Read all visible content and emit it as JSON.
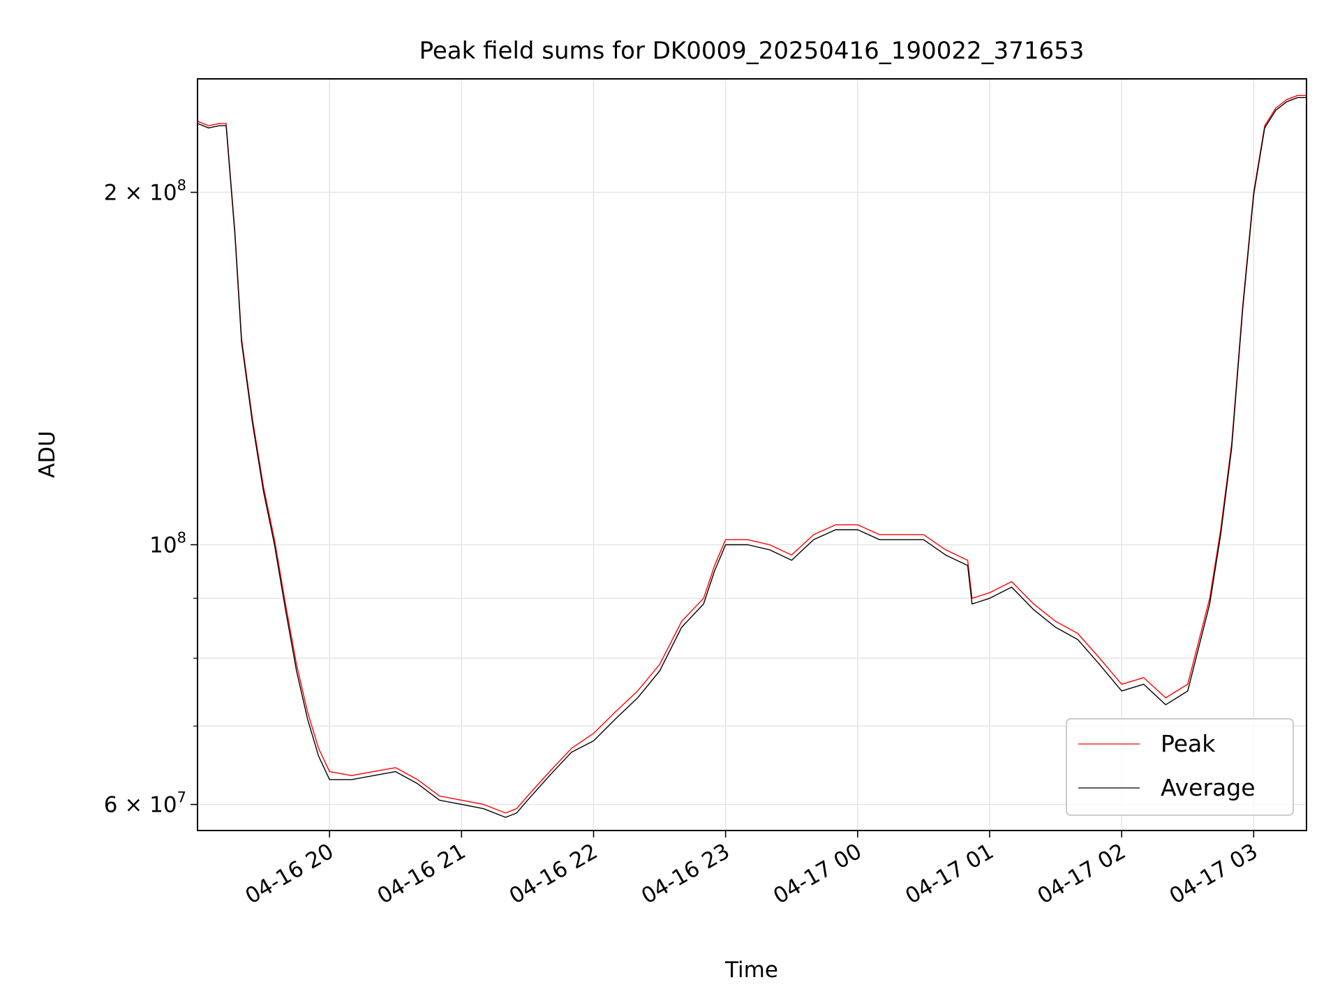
{
  "chart_data": {
    "type": "line",
    "title": "Peak field sums for DK0009_20250416_190022_371653",
    "xlabel": "Time",
    "ylabel": "ADU",
    "yscale": "log",
    "ylim": [
      57000000,
      250000000
    ],
    "xlim": [
      "2025-04-16 19:00",
      "2025-04-17 03:24"
    ],
    "grid": true,
    "legend_position": "lower-right",
    "x_ticks": [
      {
        "value": "2025-04-16 20:00",
        "label": "04-16 20"
      },
      {
        "value": "2025-04-16 21:00",
        "label": "04-16 21"
      },
      {
        "value": "2025-04-16 22:00",
        "label": "04-16 22"
      },
      {
        "value": "2025-04-16 23:00",
        "label": "04-16 23"
      },
      {
        "value": "2025-04-17 00:00",
        "label": "04-17 00"
      },
      {
        "value": "2025-04-17 01:00",
        "label": "04-17 01"
      },
      {
        "value": "2025-04-17 02:00",
        "label": "04-17 02"
      },
      {
        "value": "2025-04-17 03:00",
        "label": "04-17 03"
      }
    ],
    "y_ticks": [
      {
        "value": 60000000,
        "label": "6 × 10",
        "exponent": "7"
      },
      {
        "value": 100000000,
        "label": "10",
        "exponent": "8"
      },
      {
        "value": 200000000,
        "label": "2 × 10",
        "exponent": "8"
      }
    ],
    "y_minor_ticks": [
      70000000,
      80000000,
      90000000
    ],
    "series": [
      {
        "name": "Peak",
        "color": "#ff0000",
        "x": [
          "2025-04-16 19:00",
          "2025-04-16 19:05",
          "2025-04-16 19:10",
          "2025-04-16 19:13",
          "2025-04-16 19:17",
          "2025-04-16 19:20",
          "2025-04-16 19:25",
          "2025-04-16 19:30",
          "2025-04-16 19:35",
          "2025-04-16 19:40",
          "2025-04-16 19:45",
          "2025-04-16 19:50",
          "2025-04-16 19:55",
          "2025-04-16 20:00",
          "2025-04-16 20:10",
          "2025-04-16 20:20",
          "2025-04-16 20:30",
          "2025-04-16 20:40",
          "2025-04-16 20:50",
          "2025-04-16 21:00",
          "2025-04-16 21:10",
          "2025-04-16 21:20",
          "2025-04-16 21:25",
          "2025-04-16 21:30",
          "2025-04-16 21:40",
          "2025-04-16 21:50",
          "2025-04-16 22:00",
          "2025-04-16 22:10",
          "2025-04-16 22:20",
          "2025-04-16 22:30",
          "2025-04-16 22:40",
          "2025-04-16 22:50",
          "2025-04-16 22:55",
          "2025-04-16 23:00",
          "2025-04-16 23:10",
          "2025-04-16 23:20",
          "2025-04-16 23:30",
          "2025-04-16 23:40",
          "2025-04-16 23:50",
          "2025-04-17 00:00",
          "2025-04-17 00:10",
          "2025-04-17 00:20",
          "2025-04-17 00:30",
          "2025-04-17 00:40",
          "2025-04-17 00:50",
          "2025-04-17 00:52",
          "2025-04-17 01:00",
          "2025-04-17 01:10",
          "2025-04-17 01:20",
          "2025-04-17 01:30",
          "2025-04-17 01:40",
          "2025-04-17 01:50",
          "2025-04-17 02:00",
          "2025-04-17 02:10",
          "2025-04-17 02:20",
          "2025-04-17 02:30",
          "2025-04-17 02:40",
          "2025-04-17 02:45",
          "2025-04-17 02:50",
          "2025-04-17 02:55",
          "2025-04-17 03:00",
          "2025-04-17 03:05",
          "2025-04-17 03:10",
          "2025-04-17 03:15",
          "2025-04-17 03:20",
          "2025-04-17 03:24"
        ],
        "values": [
          230000000,
          228000000,
          229000000,
          229000000,
          185000000,
          150000000,
          128000000,
          112000000,
          101000000,
          89000000,
          79000000,
          72000000,
          67000000,
          64000000,
          63500000,
          64000000,
          64500000,
          63000000,
          61000000,
          60500000,
          60000000,
          59000000,
          59500000,
          61000000,
          64000000,
          67000000,
          69000000,
          72000000,
          75000000,
          79000000,
          86000000,
          90000000,
          96000000,
          101000000,
          101000000,
          100000000,
          98000000,
          102000000,
          104000000,
          104000000,
          102000000,
          102000000,
          102000000,
          99000000,
          97000000,
          90000000,
          91000000,
          93000000,
          89000000,
          86000000,
          84000000,
          80000000,
          76000000,
          77000000,
          74000000,
          76000000,
          90000000,
          103000000,
          122000000,
          160000000,
          200000000,
          228000000,
          236000000,
          240000000,
          242000000,
          242000000
        ]
      },
      {
        "name": "Average",
        "color": "#000000",
        "x": [
          "2025-04-16 19:00",
          "2025-04-16 19:05",
          "2025-04-16 19:10",
          "2025-04-16 19:13",
          "2025-04-16 19:17",
          "2025-04-16 19:20",
          "2025-04-16 19:25",
          "2025-04-16 19:30",
          "2025-04-16 19:35",
          "2025-04-16 19:40",
          "2025-04-16 19:45",
          "2025-04-16 19:50",
          "2025-04-16 19:55",
          "2025-04-16 20:00",
          "2025-04-16 20:10",
          "2025-04-16 20:20",
          "2025-04-16 20:30",
          "2025-04-16 20:40",
          "2025-04-16 20:50",
          "2025-04-16 21:00",
          "2025-04-16 21:10",
          "2025-04-16 21:20",
          "2025-04-16 21:25",
          "2025-04-16 21:30",
          "2025-04-16 21:40",
          "2025-04-16 21:50",
          "2025-04-16 22:00",
          "2025-04-16 22:10",
          "2025-04-16 22:20",
          "2025-04-16 22:30",
          "2025-04-16 22:40",
          "2025-04-16 22:50",
          "2025-04-16 22:55",
          "2025-04-16 23:00",
          "2025-04-16 23:10",
          "2025-04-16 23:20",
          "2025-04-16 23:30",
          "2025-04-16 23:40",
          "2025-04-16 23:50",
          "2025-04-17 00:00",
          "2025-04-17 00:10",
          "2025-04-17 00:20",
          "2025-04-17 00:30",
          "2025-04-17 00:40",
          "2025-04-17 00:50",
          "2025-04-17 00:52",
          "2025-04-17 01:00",
          "2025-04-17 01:10",
          "2025-04-17 01:20",
          "2025-04-17 01:30",
          "2025-04-17 01:40",
          "2025-04-17 01:50",
          "2025-04-17 02:00",
          "2025-04-17 02:10",
          "2025-04-17 02:20",
          "2025-04-17 02:30",
          "2025-04-17 02:40",
          "2025-04-17 02:45",
          "2025-04-17 02:50",
          "2025-04-17 02:55",
          "2025-04-17 03:00",
          "2025-04-17 03:05",
          "2025-04-17 03:10",
          "2025-04-17 03:15",
          "2025-04-17 03:20",
          "2025-04-17 03:24"
        ],
        "values": [
          229000000,
          227000000,
          228000000,
          228000000,
          184000000,
          149000000,
          127000000,
          111000000,
          100000000,
          88000000,
          78000000,
          71000000,
          66000000,
          63000000,
          63000000,
          63500000,
          64000000,
          62500000,
          60500000,
          60000000,
          59500000,
          58500000,
          59000000,
          60500000,
          63500000,
          66500000,
          68000000,
          71000000,
          74000000,
          78000000,
          85000000,
          89000000,
          95000000,
          100000000,
          100000000,
          99000000,
          97000000,
          101000000,
          103000000,
          103000000,
          101000000,
          101000000,
          101000000,
          98000000,
          96000000,
          89000000,
          90000000,
          92000000,
          88000000,
          85000000,
          83000000,
          79000000,
          75000000,
          76000000,
          73000000,
          75000000,
          89000000,
          102000000,
          121000000,
          159000000,
          199000000,
          227000000,
          235000000,
          239000000,
          241000000,
          241000000
        ]
      }
    ]
  }
}
